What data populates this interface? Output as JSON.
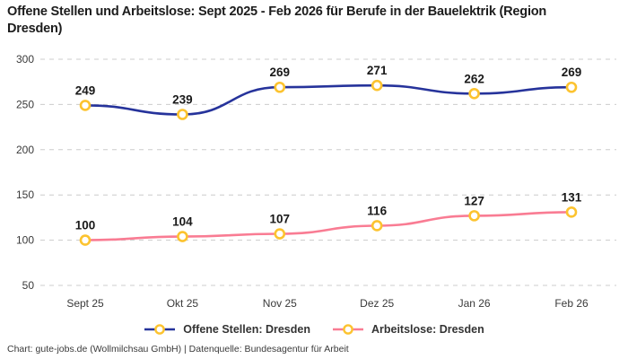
{
  "title": "Offene Stellen und Arbeitslose: Sept 2025 - Feb 2026 für Berufe in der Bauelektrik (Region Dresden)",
  "footer": "Chart: gute-jobs.de (Wollmilchsau GmbH) | Datenquelle: Bundesagentur für Arbeit",
  "chart_data": {
    "type": "line",
    "categories": [
      "Sept 25",
      "Okt 25",
      "Nov 25",
      "Dez 25",
      "Jan 26",
      "Feb 26"
    ],
    "series": [
      {
        "name": "Offene Stellen: Dresden",
        "color": "#26339b",
        "values": [
          249,
          239,
          269,
          271,
          262,
          269
        ]
      },
      {
        "name": "Arbeitslose: Dresden",
        "color": "#f97c93",
        "values": [
          100,
          104,
          107,
          116,
          127,
          131
        ]
      }
    ],
    "title": "Offene Stellen und Arbeitslose: Sept 2025 - Feb 2026 für Berufe in der Bauelektrik (Region Dresden)",
    "xlabel": "",
    "ylabel": "",
    "ylim": [
      50,
      300
    ],
    "yticks": [
      50,
      100,
      150,
      200,
      250,
      300
    ],
    "grid": true,
    "grid_color": "#cccccc",
    "legend_position": "bottom",
    "marker": {
      "fill": "#ffffff",
      "stroke": "#fcc32f"
    },
    "data_labels": true
  }
}
